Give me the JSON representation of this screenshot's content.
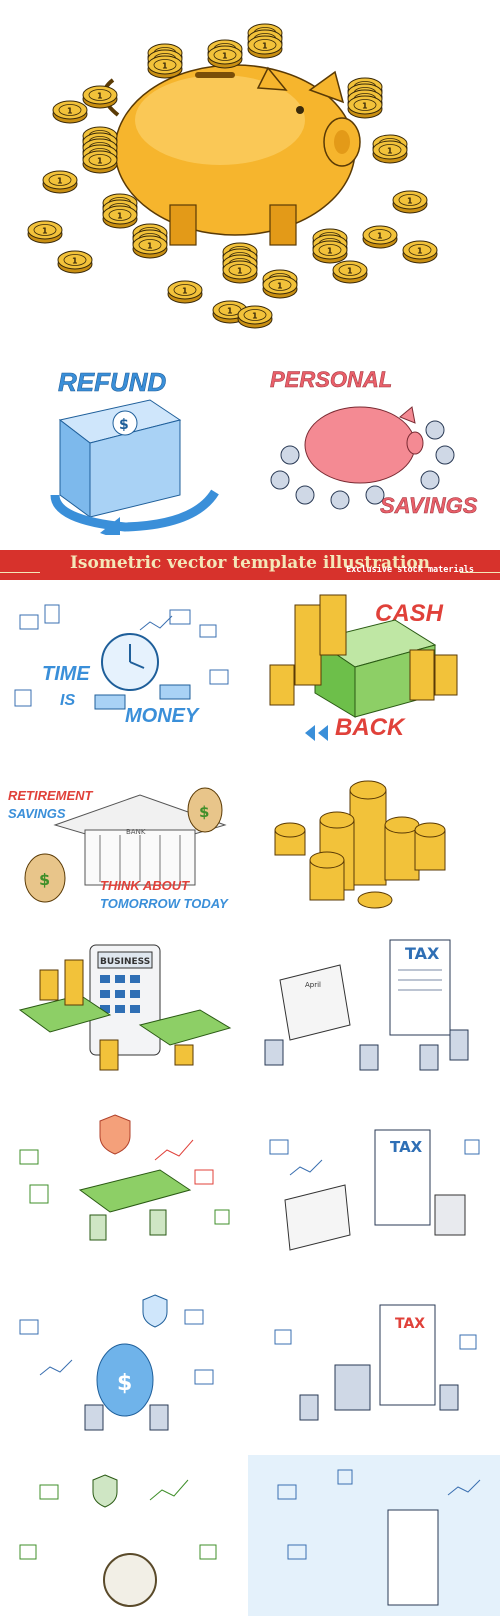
{
  "banner": {
    "title": "Isometric vector template illustration",
    "subtitle": "Exclusive stock materials"
  },
  "tiles": {
    "refund": {
      "label": "REFUND"
    },
    "personal_savings": {
      "top": "PERSONAL",
      "bottom": "SAVINGS"
    },
    "time_is_money": {
      "time": "TIME",
      "is": "IS",
      "money": "MONEY"
    },
    "cash_back": {
      "top": "CASH",
      "bottom": "BACK"
    },
    "retirement": {
      "line1": "RETIREMENT",
      "line2": "SAVINGS",
      "line3": "THINK  ABOUT",
      "line4": "TOMORROW  TODAY",
      "bank_sign": "BANK"
    },
    "business": {
      "screen": "BUSINESS"
    },
    "tax1": {
      "label": "TAX",
      "calendar": "April"
    },
    "tax2": {
      "label": "TAX"
    },
    "tax3": {
      "label": "TAX"
    }
  },
  "colors": {
    "banner": "#d7322c",
    "gold": "#f2c23a",
    "gold_dark": "#c98f12",
    "blue": "#3a8fd9",
    "red": "#e0413a",
    "green": "#6dbf4a",
    "pink": "#f48a93"
  }
}
